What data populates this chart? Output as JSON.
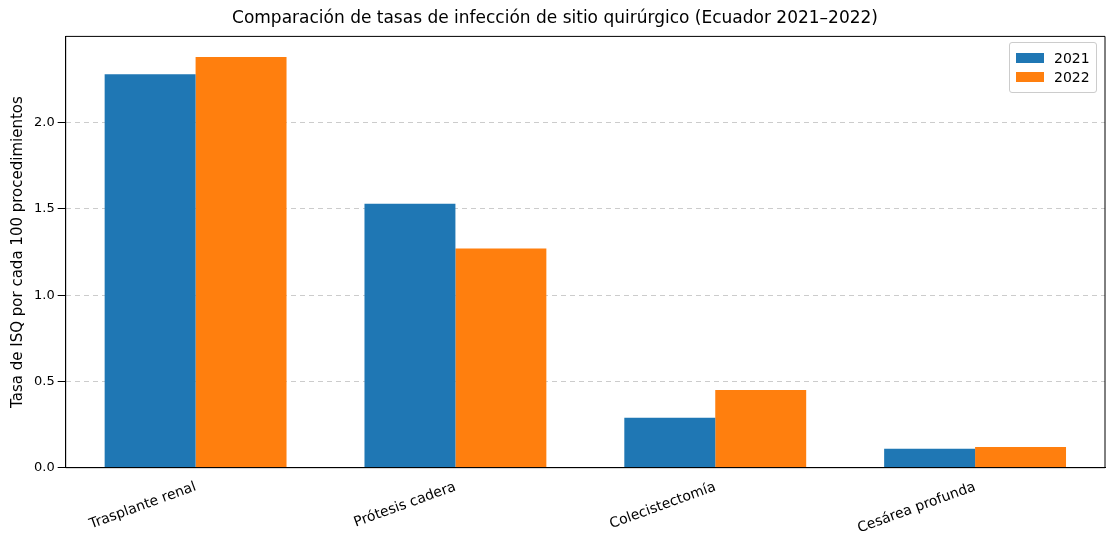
{
  "chart_data": {
    "type": "bar",
    "title": "Comparación de tasas de infección de sitio quirúrgico (Ecuador 2021–2022)",
    "ylabel": "Tasa de ISQ por cada 100 procedimientos",
    "categories": [
      "Trasplante renal",
      "Prótesis cadera",
      "Colecistectomía",
      "Cesárea profunda"
    ],
    "series": [
      {
        "name": "2021",
        "color": "#1f77b4",
        "values": [
          2.28,
          1.53,
          0.29,
          0.11
        ]
      },
      {
        "name": "2022",
        "color": "#ff7f0e",
        "values": [
          2.38,
          1.27,
          0.45,
          0.12
        ]
      }
    ],
    "ylim": [
      0,
      2.5
    ],
    "yticks": [
      {
        "value": 0,
        "label": "0.0"
      },
      {
        "value": 0.5,
        "label": "0.5"
      },
      {
        "value": 1,
        "label": "1.0"
      },
      {
        "value": 1.5,
        "label": "1.5"
      },
      {
        "value": 2,
        "label": "2.0"
      }
    ],
    "grid": "y",
    "legend": "top right"
  }
}
